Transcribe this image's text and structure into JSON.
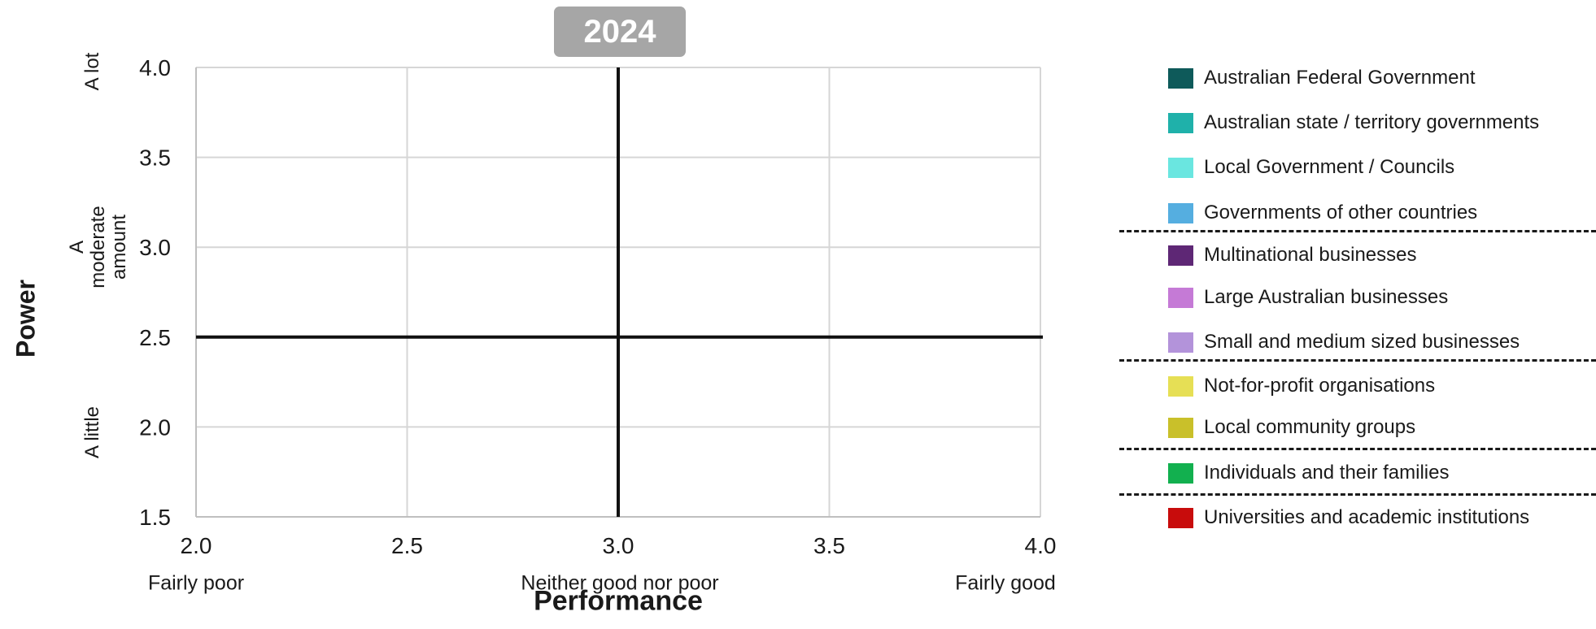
{
  "chart_data": {
    "type": "scatter",
    "title": "2024",
    "xlabel": "Performance",
    "ylabel": "Power",
    "xlim": [
      2.0,
      4.0
    ],
    "ylim": [
      1.5,
      4.0
    ],
    "x_ticks": [
      "2.0",
      "2.5",
      "3.0",
      "3.5",
      "4.0"
    ],
    "y_ticks": [
      "1.5",
      "2.0",
      "2.5",
      "3.0",
      "3.5",
      "4.0"
    ],
    "x_band_labels": [
      "Fairly poor",
      "Neither good nor poor",
      "Fairly good"
    ],
    "y_band_labels": [
      "A little",
      "A moderate amount",
      "A lot"
    ],
    "reference_lines": {
      "x": 3.0,
      "y": 2.5
    },
    "grid": true,
    "legend_position": "right",
    "series": [
      {
        "name": "Australian Federal Government",
        "color": "#0e5a5a",
        "values": []
      },
      {
        "name": "Australian state / territory governments",
        "color": "#1fb1aa",
        "values": []
      },
      {
        "name": "Local Government / Councils",
        "color": "#6ae6e0",
        "values": []
      },
      {
        "name": "Governments of other countries",
        "color": "#55aee0",
        "values": []
      },
      {
        "name": "Multinational businesses",
        "color": "#5e2775",
        "values": []
      },
      {
        "name": "Large Australian businesses",
        "color": "#c57ad6",
        "values": []
      },
      {
        "name": "Small and medium sized businesses",
        "color": "#b393da",
        "values": []
      },
      {
        "name": "Not-for-profit organisations",
        "color": "#e6df55",
        "values": []
      },
      {
        "name": "Local community groups",
        "color": "#c9c02a",
        "values": []
      },
      {
        "name": "Individuals and their families",
        "color": "#12b04f",
        "values": []
      },
      {
        "name": "Universities and academic institutions",
        "color": "#c80c0c",
        "values": []
      }
    ],
    "legend_groups": [
      [
        0,
        1,
        2,
        3
      ],
      [
        4,
        5,
        6
      ],
      [
        7,
        8
      ],
      [
        9
      ],
      [
        10
      ]
    ]
  }
}
